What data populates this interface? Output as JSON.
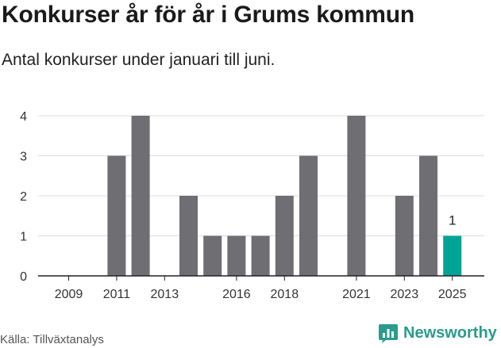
{
  "header": {
    "title": "Konkurser år för år i Grums kommun",
    "subtitle": "Antal konkurser under januari till juni."
  },
  "footer": {
    "source": "Källa: Tillväxtanalys",
    "brand": "Newsworthy",
    "brand_icon": "bar-chart-logo-icon"
  },
  "colors": {
    "bar": "#6f6e73",
    "highlight": "#00a396",
    "grid": "#dddddd",
    "axis": "#222222",
    "brand": "#2a9b8c"
  },
  "chart_data": {
    "type": "bar",
    "x": [
      2009,
      2010,
      2011,
      2012,
      2013,
      2014,
      2015,
      2016,
      2017,
      2018,
      2019,
      2020,
      2021,
      2022,
      2023,
      2024,
      2025
    ],
    "values": [
      0,
      0,
      3,
      4,
      0,
      2,
      1,
      1,
      1,
      2,
      3,
      0,
      4,
      0,
      2,
      3,
      1
    ],
    "highlight_x": 2025,
    "data_labels": [
      {
        "x": 2025,
        "label": "1"
      }
    ],
    "x_tick_labels": [
      "2009",
      "2011",
      "2013",
      "2016",
      "2018",
      "2021",
      "2023",
      "2025"
    ],
    "y_ticks": [
      0,
      1,
      2,
      3,
      4
    ],
    "ylim": [
      0,
      4
    ],
    "grid": true,
    "legend": "none"
  }
}
